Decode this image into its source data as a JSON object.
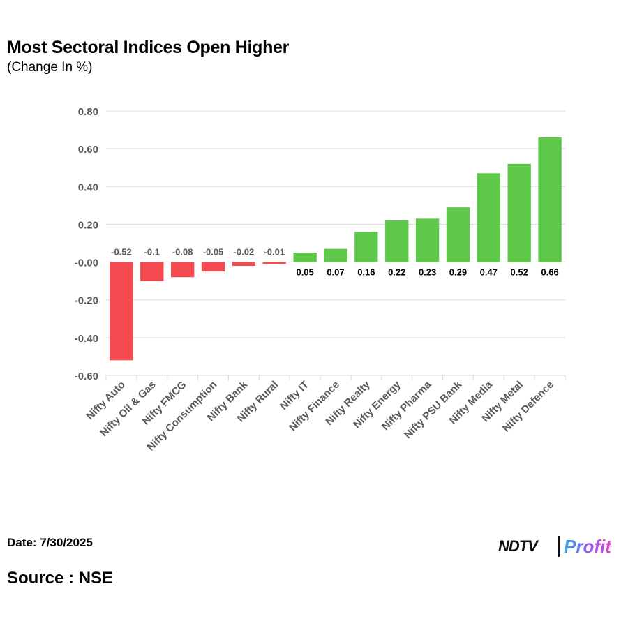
{
  "chart_data": {
    "type": "bar",
    "title": "Most Sectoral Indices Open Higher",
    "subtitle": "(Change In %)",
    "categories": [
      "Nifty Auto",
      "Nifty Oil & Gas",
      "Nifty FMCG",
      "Nifty Consumption",
      "Nifty Bank",
      "Nifty Rural",
      "Nifty IT",
      "Nifty Finance",
      "Nifty Realty",
      "Nifty Energy",
      "Nifty Pharma",
      "Nifty PSU Bank",
      "Nifty Media",
      "Nifty Metal",
      "Nifty Defence"
    ],
    "values": [
      -0.52,
      -0.1,
      -0.08,
      -0.05,
      -0.02,
      -0.01,
      0.05,
      0.07,
      0.16,
      0.22,
      0.23,
      0.29,
      0.47,
      0.52,
      0.66
    ],
    "data_labels": [
      "-0.52",
      "-0.1",
      "-0.08",
      "-0.05",
      "-0.02",
      "-0.01",
      "0.05",
      "0.07",
      "0.16",
      "0.22",
      "0.23",
      "0.29",
      "0.47",
      "0.52",
      "0.66"
    ],
    "y_ticks": [
      "0.80",
      "0.60",
      "0.40",
      "0.20",
      "-0.00",
      "-0.20",
      "-0.40",
      "-0.60"
    ],
    "y_tick_values": [
      0.8,
      0.6,
      0.4,
      0.2,
      0,
      -0.2,
      -0.4,
      -0.6
    ],
    "ylim": [
      -0.6,
      0.8
    ],
    "xlabel": "",
    "ylabel": "",
    "grid": true,
    "legend": "none",
    "colors": {
      "positive": "#5ec84a",
      "negative": "#f24a4e",
      "grid": "#d9d9d9",
      "label_negative": "#595959",
      "label_positive": "#000000"
    }
  },
  "footer": {
    "date": "Date: 7/30/2025",
    "source": "Source : NSE"
  },
  "logo": {
    "ndtv": "NDTV",
    "profit": "Profit"
  }
}
